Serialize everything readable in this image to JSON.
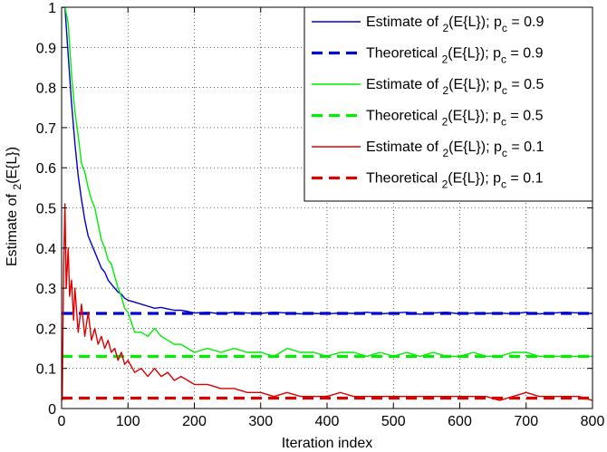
{
  "chart_data": {
    "type": "line",
    "xlabel": "Iteration index",
    "ylabel": "Estimate of  (E{L})",
    "ylabel_parts": {
      "pre": "Estimate of ",
      "sub": "2",
      "post": "(E{L})"
    },
    "xlim": [
      0,
      800
    ],
    "ylim": [
      0,
      1
    ],
    "xticks": [
      0,
      100,
      200,
      300,
      400,
      500,
      600,
      700,
      800
    ],
    "yticks": [
      0,
      0.1,
      0.2,
      0.3,
      0.4,
      0.5,
      0.6,
      0.7,
      0.8,
      0.9,
      1
    ],
    "xtick_labels": [
      "0",
      "100",
      "200",
      "300",
      "400",
      "500",
      "600",
      "700",
      "800"
    ],
    "ytick_labels": [
      "0",
      "0.1",
      "0.2",
      "0.3",
      "0.4",
      "0.5",
      "0.6",
      "0.7",
      "0.8",
      "0.9",
      "1"
    ],
    "grid": true,
    "grid_style": "dotted",
    "legend_position": "top-right",
    "series": [
      {
        "legend": {
          "pre": "Estimate of ",
          "sub": "2",
          "mid": "(E{L}); p",
          "sub2": "c",
          "post": " = 0.9"
        },
        "style": "solid",
        "color": "#0000cc",
        "x": [
          1,
          5,
          10,
          15,
          20,
          25,
          30,
          35,
          40,
          45,
          50,
          55,
          60,
          65,
          70,
          75,
          80,
          85,
          90,
          95,
          100,
          110,
          120,
          130,
          140,
          150,
          160,
          170,
          180,
          190,
          200,
          220,
          240,
          260,
          280,
          300,
          320,
          340,
          360,
          380,
          400,
          420,
          440,
          460,
          480,
          500,
          520,
          540,
          560,
          580,
          600,
          620,
          640,
          660,
          680,
          700,
          720,
          740,
          760,
          780,
          800
        ],
        "y": [
          1.0,
          1.0,
          0.88,
          0.76,
          0.66,
          0.58,
          0.52,
          0.47,
          0.43,
          0.41,
          0.39,
          0.37,
          0.35,
          0.34,
          0.32,
          0.31,
          0.3,
          0.29,
          0.285,
          0.275,
          0.27,
          0.265,
          0.26,
          0.255,
          0.25,
          0.252,
          0.248,
          0.245,
          0.245,
          0.242,
          0.238,
          0.24,
          0.236,
          0.24,
          0.238,
          0.237,
          0.24,
          0.238,
          0.236,
          0.237,
          0.236,
          0.238,
          0.237,
          0.24,
          0.236,
          0.238,
          0.24,
          0.235,
          0.238,
          0.24,
          0.236,
          0.238,
          0.237,
          0.238,
          0.236,
          0.24,
          0.236,
          0.238,
          0.24,
          0.238,
          0.237
        ]
      },
      {
        "legend": {
          "pre": "Theoretical ",
          "sub": "2",
          "mid": "(E{L}); p",
          "sub2": "c",
          "post": " = 0.9"
        },
        "style": "dashed",
        "color": "#0000cc",
        "x": [
          0,
          800
        ],
        "y": [
          0.237,
          0.237
        ]
      },
      {
        "legend": {
          "pre": "Estimate of ",
          "sub": "2",
          "mid": "(E{L}); p",
          "sub2": "c",
          "post": " = 0.5"
        },
        "style": "solid",
        "color": "#00ee00",
        "x": [
          1,
          5,
          10,
          15,
          20,
          25,
          30,
          35,
          40,
          45,
          50,
          55,
          60,
          65,
          70,
          75,
          80,
          85,
          90,
          95,
          100,
          110,
          120,
          130,
          140,
          150,
          160,
          170,
          180,
          190,
          200,
          220,
          240,
          260,
          280,
          300,
          320,
          340,
          360,
          380,
          400,
          420,
          440,
          460,
          480,
          500,
          520,
          540,
          560,
          580,
          600,
          620,
          640,
          660,
          680,
          700,
          720,
          740,
          760,
          780,
          800
        ],
        "y": [
          1.0,
          1.0,
          0.96,
          0.83,
          0.74,
          0.68,
          0.61,
          0.59,
          0.55,
          0.52,
          0.5,
          0.46,
          0.42,
          0.4,
          0.37,
          0.36,
          0.33,
          0.3,
          0.28,
          0.25,
          0.24,
          0.19,
          0.19,
          0.18,
          0.2,
          0.18,
          0.17,
          0.16,
          0.16,
          0.15,
          0.14,
          0.15,
          0.14,
          0.15,
          0.14,
          0.14,
          0.13,
          0.15,
          0.14,
          0.14,
          0.13,
          0.14,
          0.14,
          0.13,
          0.14,
          0.13,
          0.14,
          0.13,
          0.14,
          0.13,
          0.13,
          0.14,
          0.13,
          0.13,
          0.14,
          0.14,
          0.13,
          0.13,
          0.13,
          0.13,
          0.13
        ]
      },
      {
        "legend": {
          "pre": "Theoretical ",
          "sub": "2",
          "mid": "(E{L}); p",
          "sub2": "c",
          "post": " = 0.5"
        },
        "style": "dashed",
        "color": "#00ee00",
        "x": [
          0,
          800
        ],
        "y": [
          0.13,
          0.13
        ]
      },
      {
        "legend": {
          "pre": "Estimate of ",
          "sub": "2",
          "mid": "(E{L}); p",
          "sub2": "c",
          "post": " = 0.1"
        },
        "style": "solid",
        "color": "#dd0000",
        "x": [
          1,
          3,
          5,
          7,
          10,
          12,
          15,
          18,
          20,
          25,
          30,
          35,
          40,
          45,
          50,
          55,
          60,
          65,
          70,
          75,
          80,
          85,
          90,
          95,
          100,
          110,
          120,
          130,
          140,
          150,
          160,
          170,
          180,
          190,
          200,
          220,
          240,
          260,
          280,
          300,
          320,
          340,
          360,
          380,
          400,
          420,
          440,
          460,
          480,
          500,
          520,
          540,
          560,
          580,
          600,
          620,
          640,
          660,
          680,
          700,
          720,
          740,
          760,
          780,
          800
        ],
        "y": [
          0.02,
          0.35,
          0.51,
          0.3,
          0.4,
          0.28,
          0.32,
          0.22,
          0.3,
          0.19,
          0.26,
          0.18,
          0.24,
          0.17,
          0.2,
          0.16,
          0.18,
          0.15,
          0.17,
          0.14,
          0.15,
          0.12,
          0.14,
          0.11,
          0.12,
          0.09,
          0.1,
          0.08,
          0.1,
          0.08,
          0.09,
          0.07,
          0.08,
          0.07,
          0.06,
          0.06,
          0.05,
          0.05,
          0.04,
          0.04,
          0.03,
          0.04,
          0.03,
          0.03,
          0.03,
          0.04,
          0.03,
          0.03,
          0.03,
          0.03,
          0.03,
          0.03,
          0.03,
          0.03,
          0.03,
          0.03,
          0.03,
          0.02,
          0.03,
          0.04,
          0.03,
          0.03,
          0.03,
          0.03,
          0.02
        ]
      },
      {
        "legend": {
          "pre": "Theoretical ",
          "sub": "2",
          "mid": "(E{L}); p",
          "sub2": "c",
          "post": " = 0.1"
        },
        "style": "dashed",
        "color": "#dd0000",
        "x": [
          0,
          800
        ],
        "y": [
          0.026,
          0.026
        ]
      }
    ]
  }
}
